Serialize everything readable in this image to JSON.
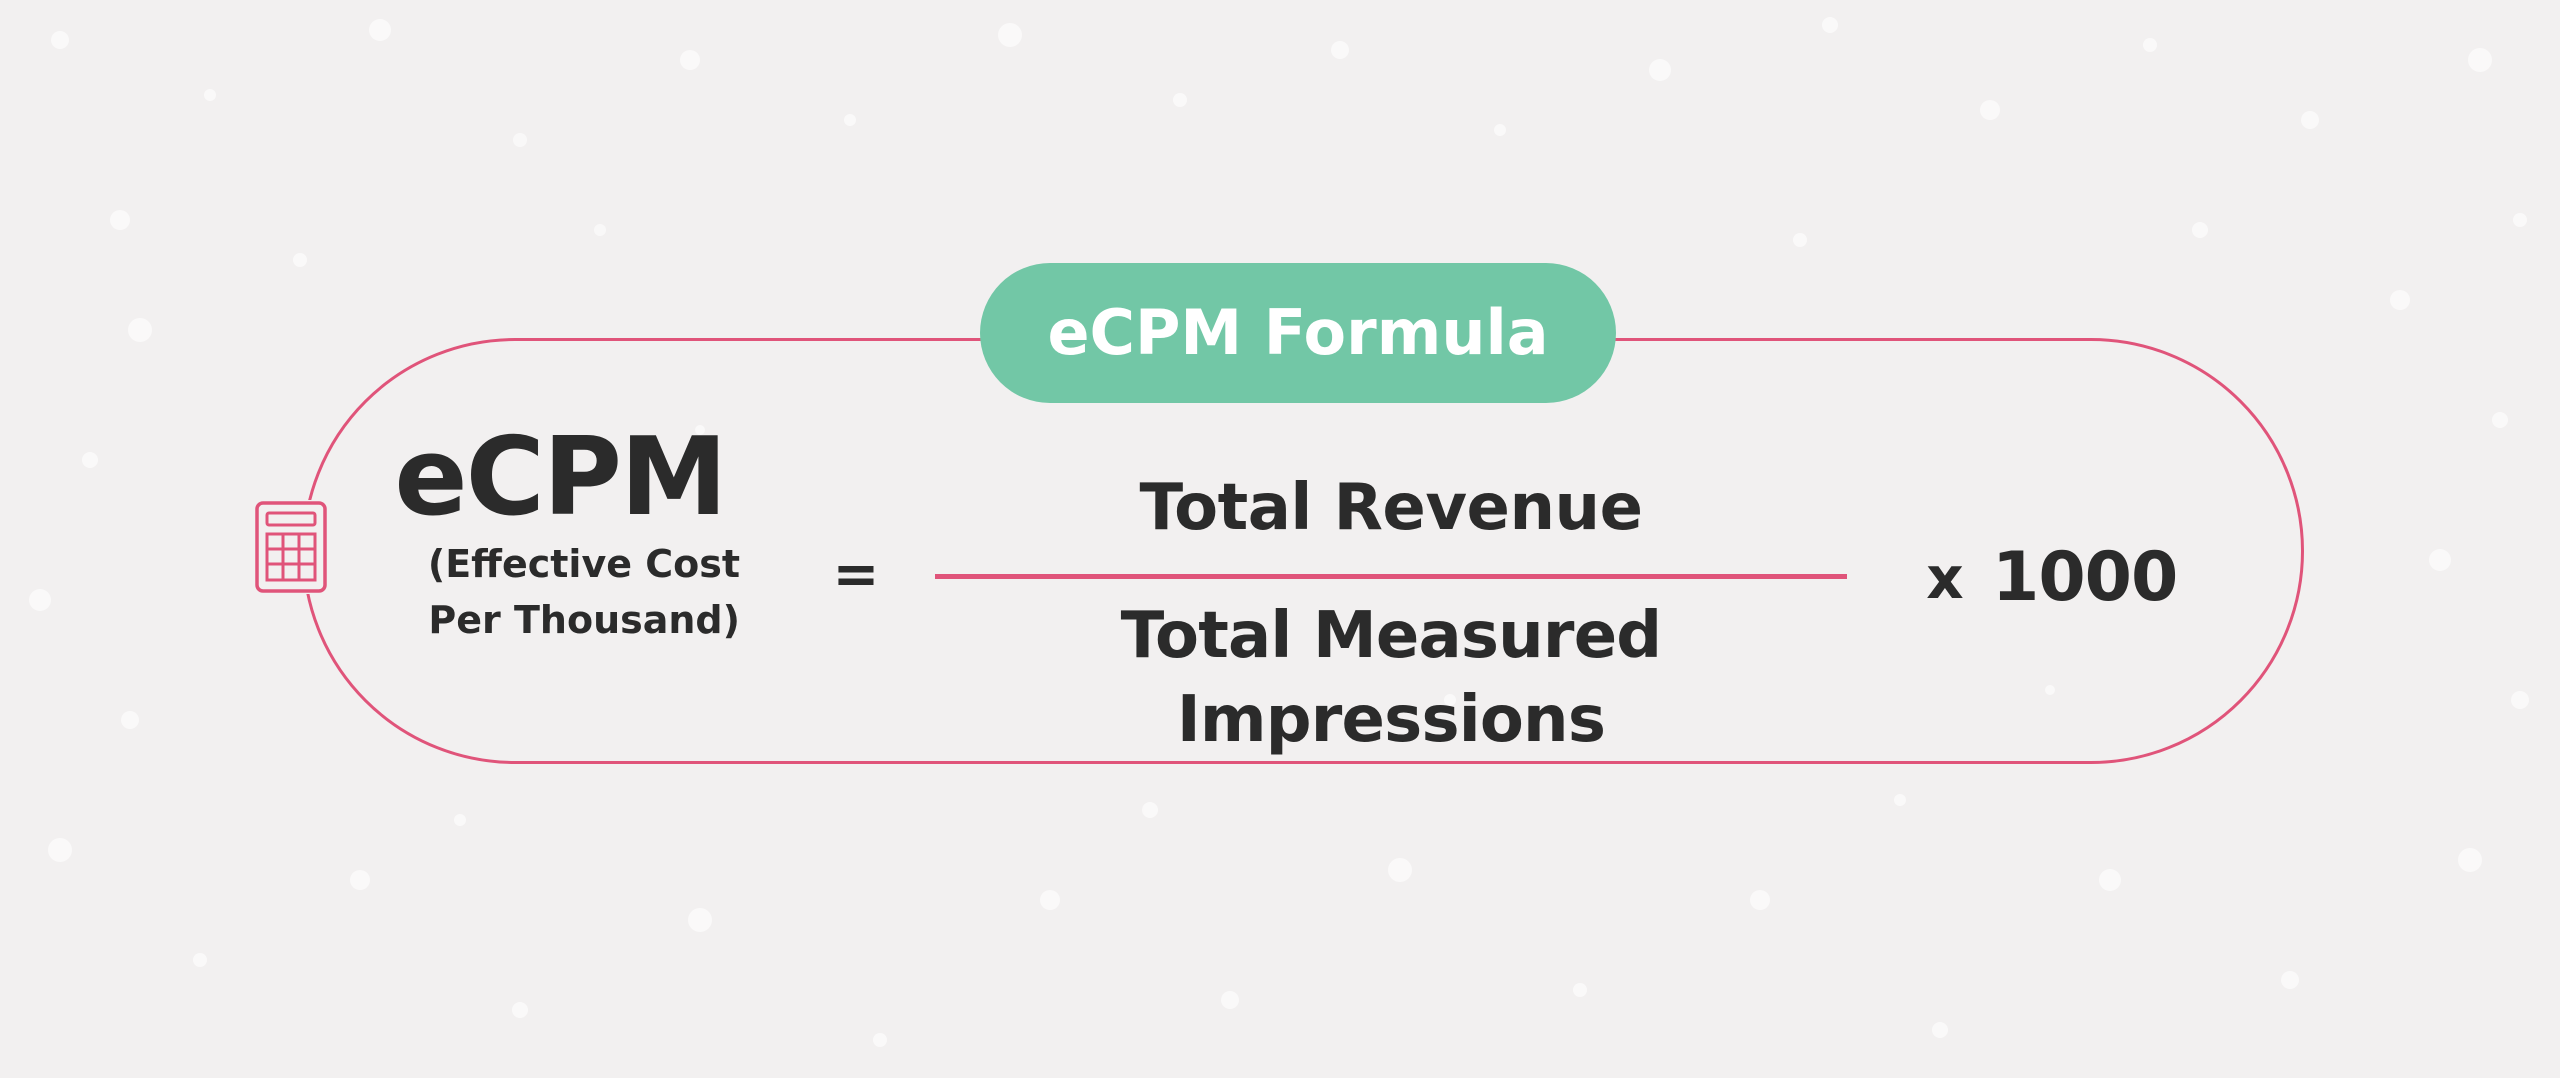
{
  "title": "eCPM Formula",
  "icon": "calculator-icon",
  "colors": {
    "accent_pink": "#e0547a",
    "badge_green": "#72c7a6",
    "text_dark": "#2b2b2b",
    "background": "#f2f0f0"
  },
  "formula": {
    "term": "eCPM",
    "term_full_line1": "(Effective Cost",
    "term_full_line2": "Per Thousand)",
    "equals": "=",
    "numerator": "Total Revenue",
    "denominator": "Total Measured Impressions",
    "times": "x",
    "multiplier": "1000"
  }
}
